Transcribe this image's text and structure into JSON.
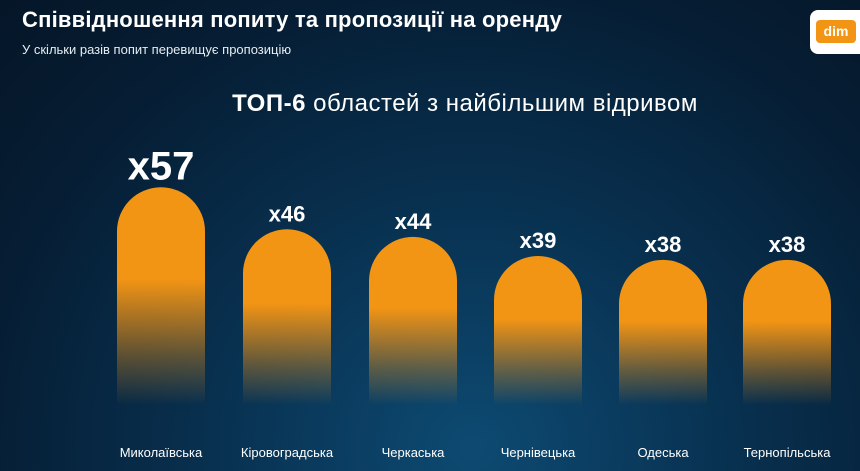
{
  "header": {
    "title": "Співвідношення попиту та пропозиції на оренду",
    "subtitle": "У скільки разів попит перевищує пропозицію"
  },
  "logo": {
    "text": "dim",
    "color": "#f39514"
  },
  "chart_data": {
    "type": "bar",
    "title_bold": "ТОП-6",
    "title_rest": " областей з найбільшим відривом",
    "categories": [
      "Миколаївська",
      "Кіровоградська",
      "Черкаська",
      "Чернівецька",
      "Одеська",
      "Тернопільська"
    ],
    "values": [
      57,
      46,
      44,
      39,
      38,
      38
    ],
    "value_labels": [
      "x57",
      "x46",
      "x44",
      "x39",
      "x38",
      "x38"
    ],
    "bar_color": "#f39514",
    "grid": false,
    "legend": "none"
  }
}
